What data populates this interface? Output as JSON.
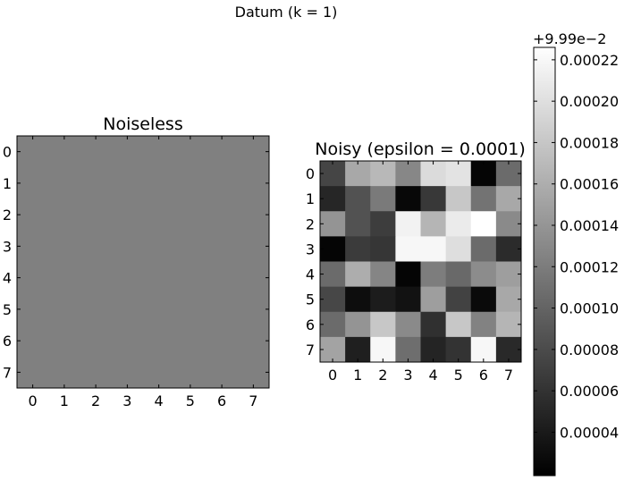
{
  "figure": {
    "suptitle": "Datum (k = 1)"
  },
  "chart_data": [
    {
      "type": "heatmap",
      "title": "Noiseless",
      "x_ticks": [
        "0",
        "1",
        "2",
        "3",
        "4",
        "5",
        "6",
        "7"
      ],
      "y_ticks": [
        "0",
        "1",
        "2",
        "3",
        "4",
        "5",
        "6",
        "7"
      ],
      "cmap": "gray",
      "uniform": true,
      "fill_color": "#808080"
    },
    {
      "type": "heatmap",
      "title": "Noisy (epsilon = 0.0001)",
      "x_ticks": [
        "0",
        "1",
        "2",
        "3",
        "4",
        "5",
        "6",
        "7"
      ],
      "y_ticks": [
        "0",
        "1",
        "2",
        "3",
        "4",
        "5",
        "6",
        "7"
      ],
      "cmap": "gray",
      "vmin": 0.0,
      "vmax": 1.0,
      "values": [
        [
          0.27,
          0.66,
          0.72,
          0.53,
          0.86,
          0.89,
          0.02,
          0.42
        ],
        [
          0.15,
          0.32,
          0.48,
          0.03,
          0.22,
          0.78,
          0.45,
          0.66
        ],
        [
          0.58,
          0.32,
          0.24,
          0.95,
          0.71,
          0.92,
          1.0,
          0.54
        ],
        [
          0.02,
          0.23,
          0.21,
          0.97,
          0.97,
          0.87,
          0.42,
          0.17
        ],
        [
          0.42,
          0.68,
          0.52,
          0.02,
          0.49,
          0.41,
          0.55,
          0.62
        ],
        [
          0.28,
          0.05,
          0.11,
          0.07,
          0.62,
          0.26,
          0.04,
          0.66
        ],
        [
          0.42,
          0.58,
          0.78,
          0.54,
          0.19,
          0.78,
          0.51,
          0.71
        ],
        [
          0.64,
          0.12,
          0.97,
          0.43,
          0.14,
          0.2,
          0.97,
          0.16
        ]
      ]
    }
  ],
  "colorbar": {
    "offset_label": "+9.99e−2",
    "ticks": [
      "0.00022",
      "0.00020",
      "0.00018",
      "0.00016",
      "0.00014",
      "0.00012",
      "0.00010",
      "0.00008",
      "0.00006",
      "0.00004"
    ],
    "tick_values": [
      0.00022,
      0.0002,
      0.00018,
      0.00016,
      0.00014,
      0.00012,
      0.0001,
      8e-05,
      6e-05,
      4e-05
    ],
    "vmin": 1.9e-05,
    "vmax": 0.000226
  }
}
